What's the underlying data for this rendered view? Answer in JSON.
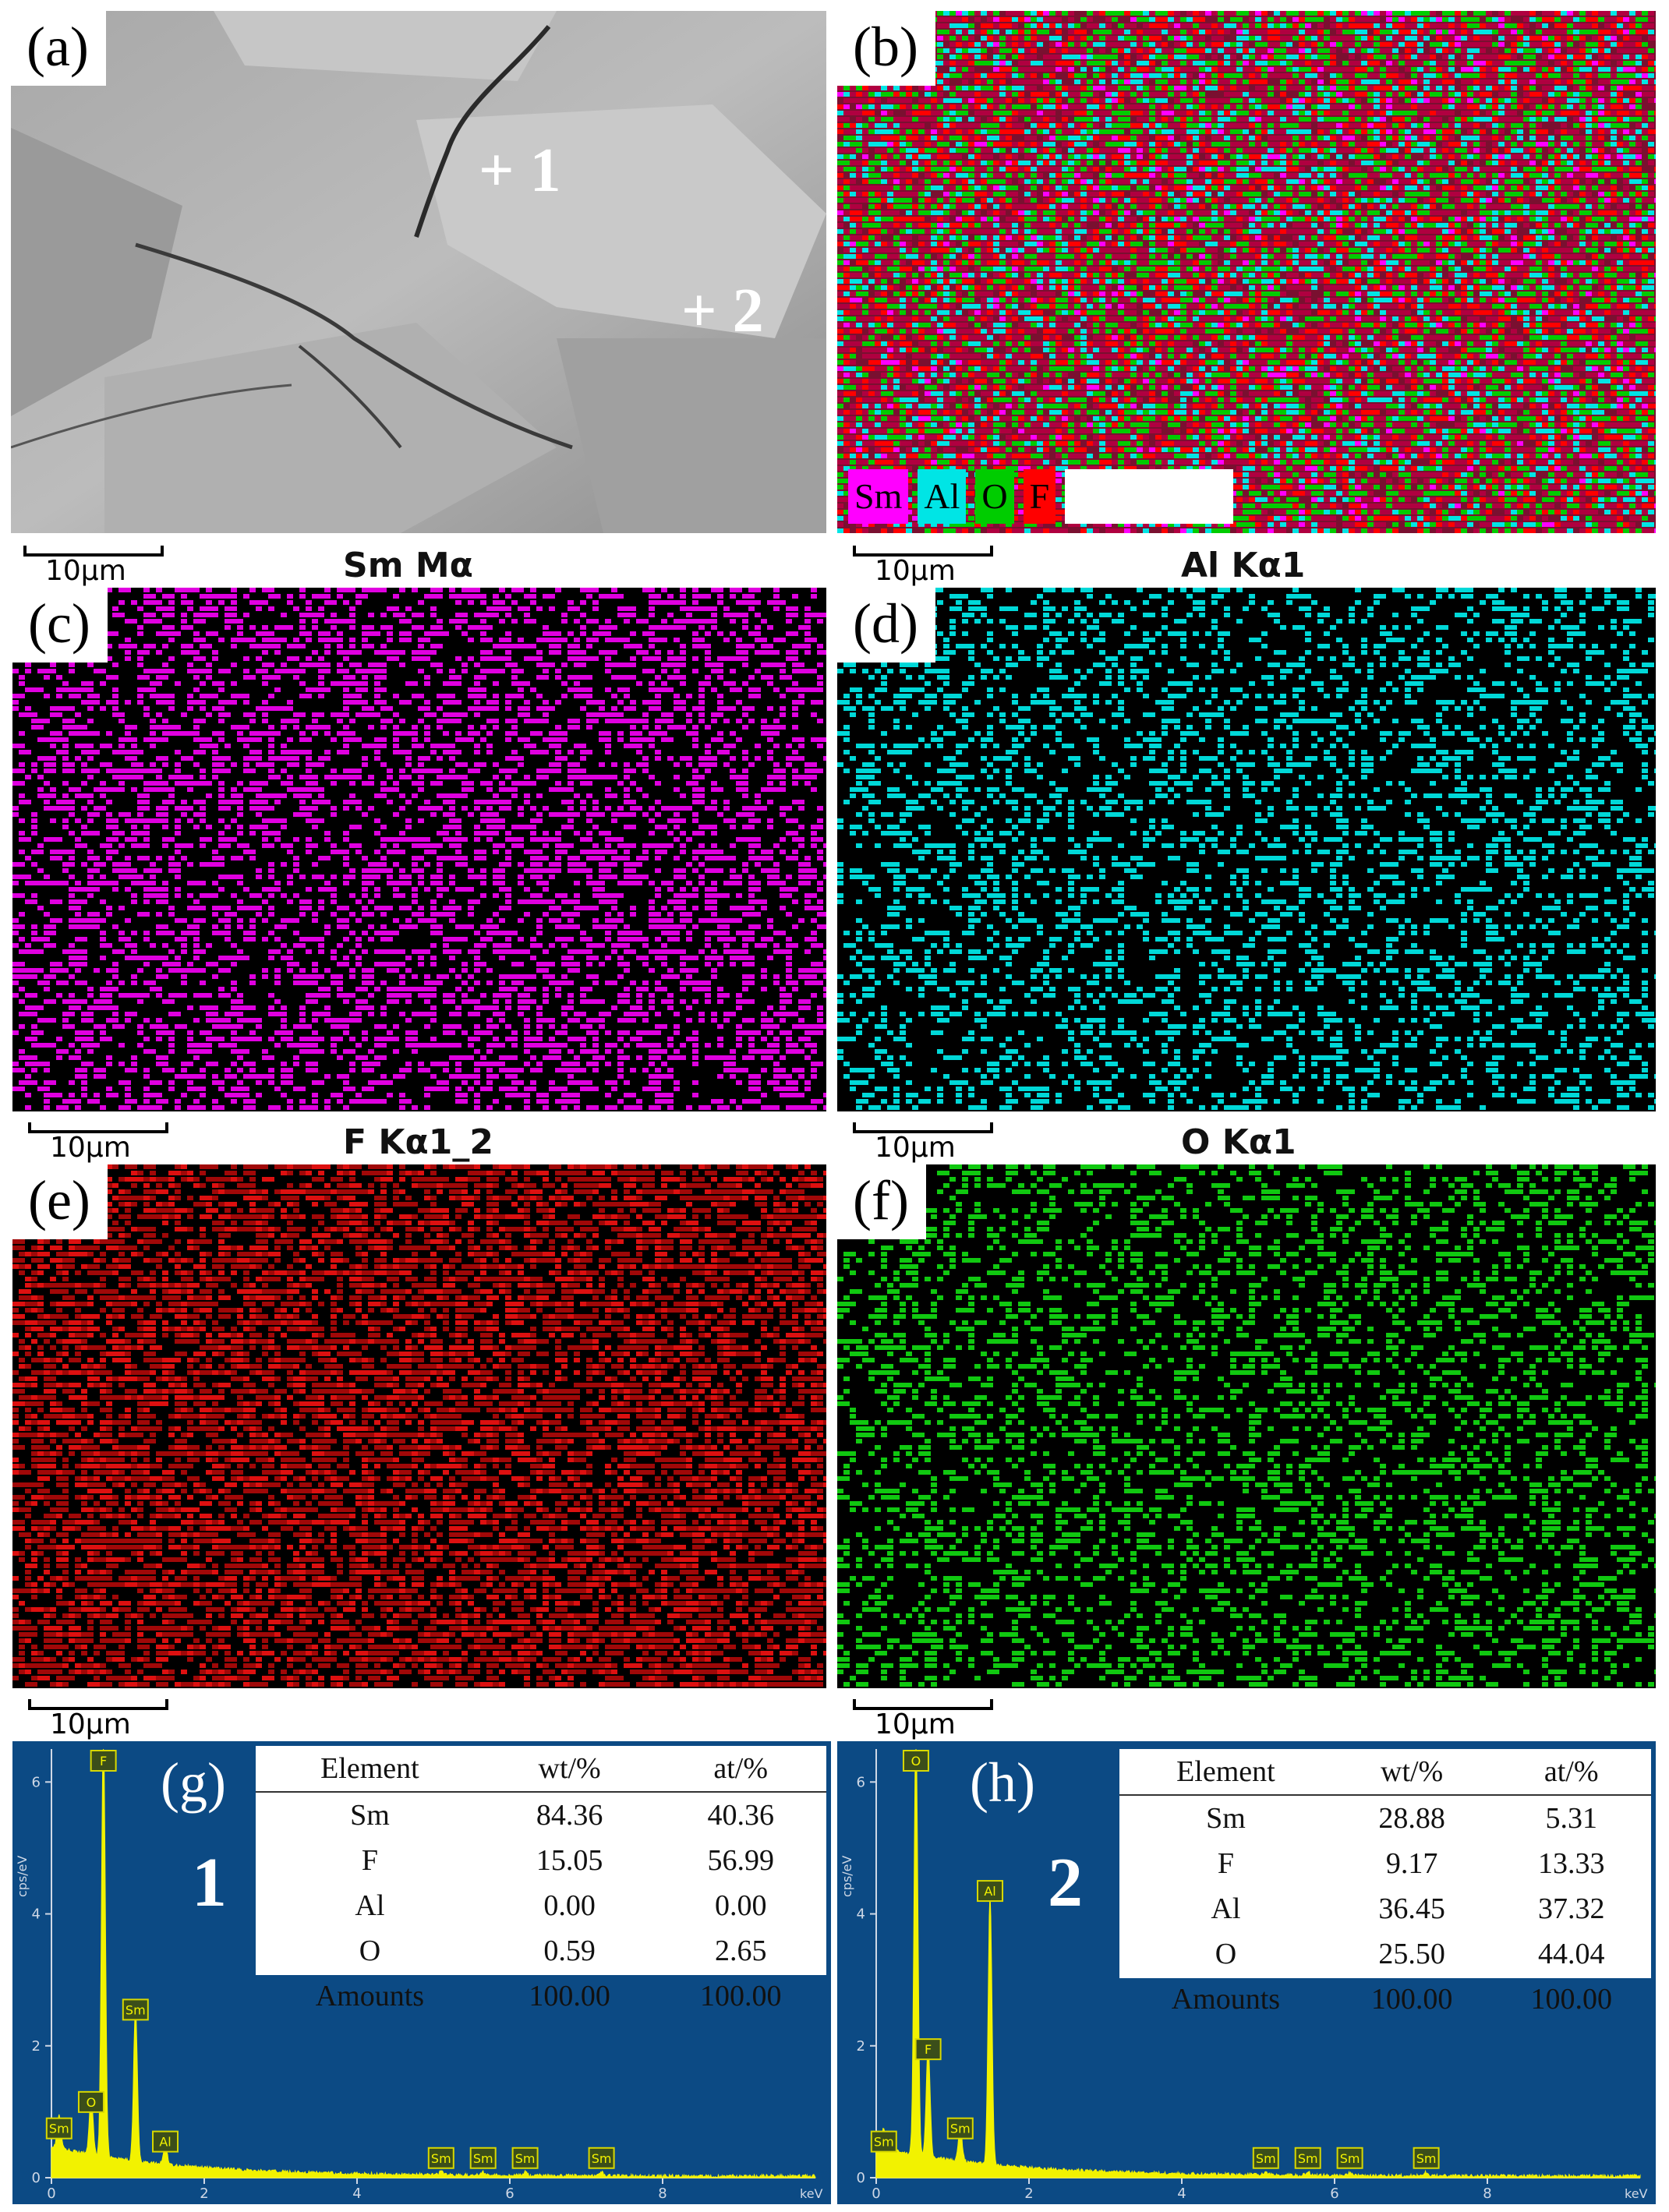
{
  "panels": {
    "a": {
      "label": "(a)",
      "points": [
        "+ 1",
        "+ 2"
      ],
      "scale": "10μm"
    },
    "b": {
      "label": "(b)",
      "scale": "10μm",
      "legend": [
        {
          "text": "Sm",
          "color": "#ff00ff"
        },
        {
          "text": "Al",
          "color": "#00e5e5"
        },
        {
          "text": "O",
          "color": "#00cc00"
        },
        {
          "text": "F",
          "color": "#ff0000"
        }
      ]
    },
    "c": {
      "label": "(c)",
      "title": "Sm Mα",
      "scale": "10μm",
      "color": "#e000e0"
    },
    "d": {
      "label": "(d)",
      "title": "Al Kα1",
      "scale": "10μm",
      "color": "#00d8d8"
    },
    "e": {
      "label": "(e)",
      "title": "F Kα1_2",
      "scale": "10μm",
      "color": "#dd1010"
    },
    "f": {
      "label": "(f)",
      "title": "O Kα1",
      "scale": "10μm",
      "color": "#10c810"
    }
  },
  "chart_data": [
    {
      "type": "line",
      "panel": "(g)",
      "point": "1",
      "ylabel": "cps/eV",
      "xlabel": "keV",
      "xlim": [
        0,
        10
      ],
      "ylim": [
        0,
        6.5
      ],
      "x_ticks": [
        "0",
        "2",
        "4",
        "6",
        "8"
      ],
      "y_ticks": [
        "0",
        "2",
        "4",
        "6"
      ],
      "peaks": [
        {
          "label": "Sm",
          "x": 0.1,
          "y": 0.5
        },
        {
          "label": "O",
          "x": 0.52,
          "y": 0.9
        },
        {
          "label": "F",
          "x": 0.68,
          "y": 6.5
        },
        {
          "label": "Sm",
          "x": 1.1,
          "y": 2.3
        },
        {
          "label": "Al",
          "x": 1.49,
          "y": 0.3
        },
        {
          "label": "Sm",
          "x": 5.1,
          "y": 0.05
        },
        {
          "label": "Sm",
          "x": 5.65,
          "y": 0.05
        },
        {
          "label": "Sm",
          "x": 6.2,
          "y": 0.05
        },
        {
          "label": "Sm",
          "x": 7.2,
          "y": 0.05
        }
      ],
      "table": {
        "headers": [
          "Element",
          "wt/%",
          "at/%"
        ],
        "rows": [
          [
            "Sm",
            "84.36",
            "40.36"
          ],
          [
            "F",
            "15.05",
            "56.99"
          ],
          [
            "Al",
            "0.00",
            "0.00"
          ],
          [
            "O",
            "0.59",
            "2.65"
          ],
          [
            "Amounts",
            "100.00",
            "100.00"
          ]
        ]
      }
    },
    {
      "type": "line",
      "panel": "(h)",
      "point": "2",
      "ylabel": "cps/eV",
      "xlabel": "keV",
      "xlim": [
        0,
        10
      ],
      "ylim": [
        0,
        6.5
      ],
      "x_ticks": [
        "0",
        "2",
        "4",
        "6",
        "8"
      ],
      "y_ticks": [
        "0",
        "2",
        "4",
        "6"
      ],
      "peaks": [
        {
          "label": "Sm",
          "x": 0.1,
          "y": 0.3
        },
        {
          "label": "O",
          "x": 0.52,
          "y": 6.5
        },
        {
          "label": "F",
          "x": 0.68,
          "y": 1.7
        },
        {
          "label": "Sm",
          "x": 1.1,
          "y": 0.5
        },
        {
          "label": "Al",
          "x": 1.49,
          "y": 4.1
        },
        {
          "label": "Sm",
          "x": 5.1,
          "y": 0.05
        },
        {
          "label": "Sm",
          "x": 5.65,
          "y": 0.05
        },
        {
          "label": "Sm",
          "x": 6.2,
          "y": 0.05
        },
        {
          "label": "Sm",
          "x": 7.2,
          "y": 0.05
        }
      ],
      "table": {
        "headers": [
          "Element",
          "wt/%",
          "at/%"
        ],
        "rows": [
          [
            "Sm",
            "28.88",
            "5.31"
          ],
          [
            "F",
            "9.17",
            "13.33"
          ],
          [
            "Al",
            "36.45",
            "37.32"
          ],
          [
            "O",
            "25.50",
            "44.04"
          ],
          [
            "Amounts",
            "100.00",
            "100.00"
          ]
        ]
      }
    }
  ]
}
